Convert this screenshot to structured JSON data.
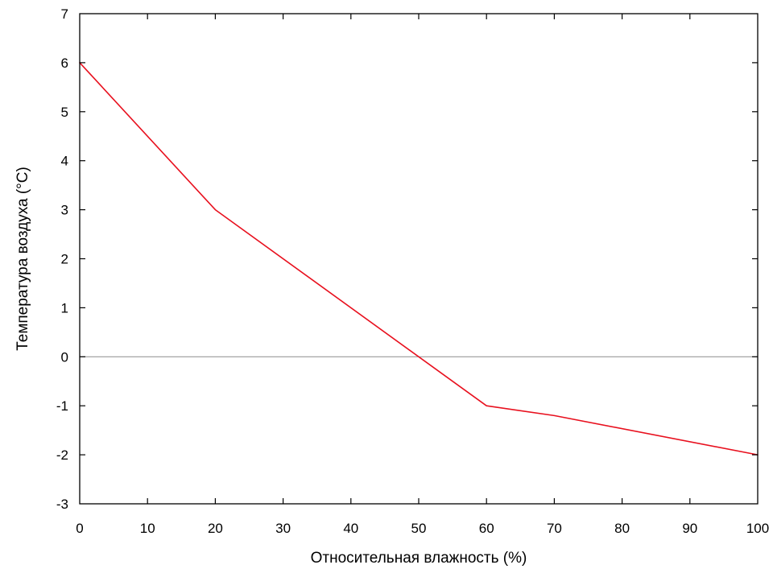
{
  "chart_data": {
    "type": "line",
    "title": "",
    "xlabel": "Относительная влажность (%)",
    "ylabel": "Температура воздуха (°C)",
    "xlim": [
      0,
      100
    ],
    "ylim": [
      -3,
      7
    ],
    "x_ticks": [
      0,
      10,
      20,
      30,
      40,
      50,
      60,
      70,
      80,
      90,
      100
    ],
    "y_ticks": [
      -3,
      -2,
      -1,
      0,
      1,
      2,
      3,
      4,
      5,
      6,
      7
    ],
    "grid": false,
    "reference_lines": [
      {
        "axis": "y",
        "value": 0,
        "color": "#9a9a9a"
      }
    ],
    "series": [
      {
        "color": "#e8101e",
        "x": [
          0,
          20,
          60,
          70,
          100
        ],
        "y": [
          6,
          3,
          -1,
          -1.2,
          -2
        ]
      }
    ]
  }
}
